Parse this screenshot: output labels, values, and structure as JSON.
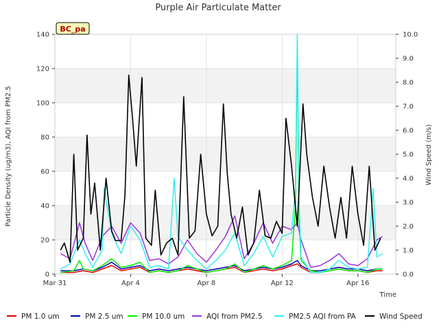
{
  "chart_data": {
    "type": "line",
    "title": "Purple Air Particulate Matter",
    "xlabel": "Time",
    "ylabel": "Particle Density (ug/m3), AQI from PM2.5",
    "y2label": "Wind Speed (m/s)",
    "site_label": "BC_pa",
    "xlim": [
      0,
      18
    ],
    "ylim": [
      0,
      140
    ],
    "y2lim": [
      0,
      10
    ],
    "x_ticks": [
      {
        "value": 0,
        "label": "Mar 31"
      },
      {
        "value": 4,
        "label": "Apr 4"
      },
      {
        "value": 8,
        "label": "Apr 8"
      },
      {
        "value": 12,
        "label": "Apr 12"
      },
      {
        "value": 16,
        "label": "Apr 16"
      }
    ],
    "y_ticks": [
      0,
      20,
      40,
      60,
      80,
      100,
      120,
      140
    ],
    "y2_ticks": [
      "0.0",
      "1.0",
      "2.0",
      "3.0",
      "4.0",
      "5.0",
      "6.0",
      "7.0",
      "8.0",
      "9.0",
      "10.0"
    ],
    "grid_bands": true,
    "legend_position": "bottom",
    "series": [
      {
        "name": "PM 1.0 um",
        "color": "#dd0000",
        "axis": "left",
        "x": [
          0.3,
          1,
          1.5,
          2,
          2.5,
          3,
          3.5,
          4,
          4.5,
          5,
          5.5,
          6,
          6.5,
          7,
          7.5,
          8,
          8.5,
          9,
          9.5,
          10,
          10.5,
          11,
          11.5,
          12,
          12.5,
          12.8,
          13,
          13.5,
          14,
          14.5,
          15,
          15.5,
          16,
          16.5,
          17,
          17.3
        ],
        "values": [
          1,
          1,
          2,
          1,
          3,
          5,
          2,
          3,
          4,
          1,
          2,
          1,
          2,
          3,
          2,
          1,
          2,
          3,
          4,
          1,
          2,
          3,
          2,
          3,
          5,
          6,
          4,
          1,
          1,
          2,
          3,
          2,
          2,
          1,
          2,
          2
        ]
      },
      {
        "name": "PM 2.5 um",
        "color": "#0000aa",
        "axis": "left",
        "x": [
          0.3,
          1,
          1.5,
          2,
          2.5,
          3,
          3.5,
          4,
          4.5,
          5,
          5.5,
          6,
          6.5,
          7,
          7.5,
          8,
          8.5,
          9,
          9.5,
          10,
          10.5,
          11,
          11.5,
          12,
          12.5,
          12.8,
          13,
          13.5,
          14,
          14.5,
          15,
          15.5,
          16,
          16.5,
          17,
          17.3
        ],
        "values": [
          2,
          2,
          3,
          2,
          4,
          7,
          3,
          4,
          5,
          2,
          3,
          2,
          3,
          4,
          3,
          2,
          3,
          4,
          5,
          2,
          3,
          4,
          3,
          4,
          6,
          8,
          5,
          2,
          2,
          3,
          4,
          3,
          3,
          2,
          3,
          3
        ]
      },
      {
        "name": "PM 10.0 um",
        "color": "#00ee00",
        "axis": "left",
        "x": [
          0.3,
          1,
          1.3,
          1.5,
          2,
          2.5,
          3,
          3.5,
          4,
          4.5,
          5,
          5.5,
          6,
          6.5,
          7,
          7.5,
          8,
          8.5,
          9,
          9.5,
          10,
          10.5,
          11,
          11.5,
          12,
          12.5,
          12.7,
          12.8,
          12.9,
          13,
          13.5,
          14,
          14.5,
          15,
          15.5,
          16,
          16.5,
          17,
          17.3
        ],
        "values": [
          1,
          2,
          8,
          3,
          2,
          5,
          9,
          4,
          5,
          7,
          1,
          2,
          1,
          2,
          5,
          3,
          1,
          2,
          3,
          6,
          1,
          3,
          5,
          3,
          5,
          8,
          40,
          130,
          30,
          8,
          2,
          1,
          2,
          3,
          2,
          2,
          1,
          3,
          3
        ]
      },
      {
        "name": "AQI from PM2.5",
        "color": "#9933dd",
        "axis": "left",
        "x": [
          0.3,
          0.8,
          1.3,
          1.6,
          2,
          2.5,
          3,
          3.5,
          4,
          4.5,
          5,
          5.5,
          6,
          6.5,
          7,
          7.5,
          8,
          8.5,
          9,
          9.5,
          10,
          10.5,
          11,
          11.5,
          12,
          12.5,
          12.8,
          13,
          13.5,
          14,
          14.5,
          15,
          15.5,
          16,
          16.5,
          17,
          17.3
        ],
        "values": [
          12,
          9,
          30,
          18,
          8,
          22,
          28,
          18,
          30,
          24,
          8,
          9,
          6,
          10,
          20,
          12,
          7,
          14,
          22,
          34,
          9,
          18,
          30,
          18,
          28,
          26,
          30,
          20,
          4,
          5,
          8,
          12,
          6,
          5,
          9,
          20,
          22
        ]
      },
      {
        "name": "PM2.5 AQI from PA",
        "color": "#33eeee",
        "axis": "left",
        "x": [
          0.3,
          0.8,
          1.3,
          1.6,
          2,
          2.5,
          2.6,
          3,
          3.5,
          4,
          4.5,
          5,
          5.5,
          6,
          6.3,
          6.5,
          7,
          7.5,
          8,
          8.5,
          9,
          9.5,
          10,
          10.5,
          11,
          11.5,
          12,
          12.5,
          12.7,
          12.8,
          12.9,
          13,
          13.5,
          14,
          14.5,
          15,
          15.5,
          16,
          16.5,
          16.8,
          17,
          17.3
        ],
        "values": [
          3,
          6,
          20,
          12,
          4,
          14,
          50,
          24,
          12,
          28,
          20,
          4,
          5,
          3,
          56,
          22,
          14,
          8,
          3,
          8,
          14,
          24,
          5,
          12,
          22,
          10,
          22,
          24,
          50,
          140,
          40,
          10,
          1,
          1,
          3,
          8,
          4,
          3,
          4,
          50,
          10,
          12
        ]
      },
      {
        "name": "Wind Speed",
        "color": "#000000",
        "axis": "right",
        "x": [
          0.3,
          0.5,
          0.8,
          1,
          1.2,
          1.5,
          1.7,
          1.9,
          2.1,
          2.4,
          2.7,
          3,
          3.2,
          3.5,
          3.7,
          3.9,
          4.1,
          4.3,
          4.6,
          4.8,
          5.1,
          5.3,
          5.6,
          5.9,
          6.2,
          6.5,
          6.8,
          7.1,
          7.4,
          7.7,
          8,
          8.3,
          8.6,
          8.9,
          9.1,
          9.3,
          9.6,
          9.9,
          10.2,
          10.5,
          10.8,
          11.1,
          11.4,
          11.7,
          12,
          12.2,
          12.5,
          12.8,
          13.1,
          13.3,
          13.6,
          13.9,
          14.2,
          14.5,
          14.8,
          15.1,
          15.4,
          15.7,
          16,
          16.3,
          16.6,
          16.9,
          17.2
        ],
        "values": [
          1.0,
          1.3,
          0.5,
          5.0,
          1.0,
          1.5,
          5.8,
          2.5,
          3.8,
          1.0,
          4.0,
          1.8,
          1.4,
          1.4,
          3.3,
          8.3,
          6.5,
          4.5,
          8.2,
          1.5,
          1.2,
          3.5,
          0.8,
          1.3,
          1.5,
          0.8,
          7.4,
          1.5,
          1.8,
          5.0,
          2.5,
          1.6,
          2.0,
          7.1,
          4.2,
          2.5,
          1.5,
          2.8,
          0.8,
          1.3,
          3.5,
          1.6,
          1.5,
          2.2,
          1.7,
          6.5,
          4.5,
          2.0,
          7.1,
          5.0,
          3.2,
          2.0,
          4.5,
          2.8,
          1.5,
          3.2,
          1.5,
          4.5,
          2.5,
          1.2,
          4.5,
          1.0,
          1.5
        ]
      }
    ]
  }
}
